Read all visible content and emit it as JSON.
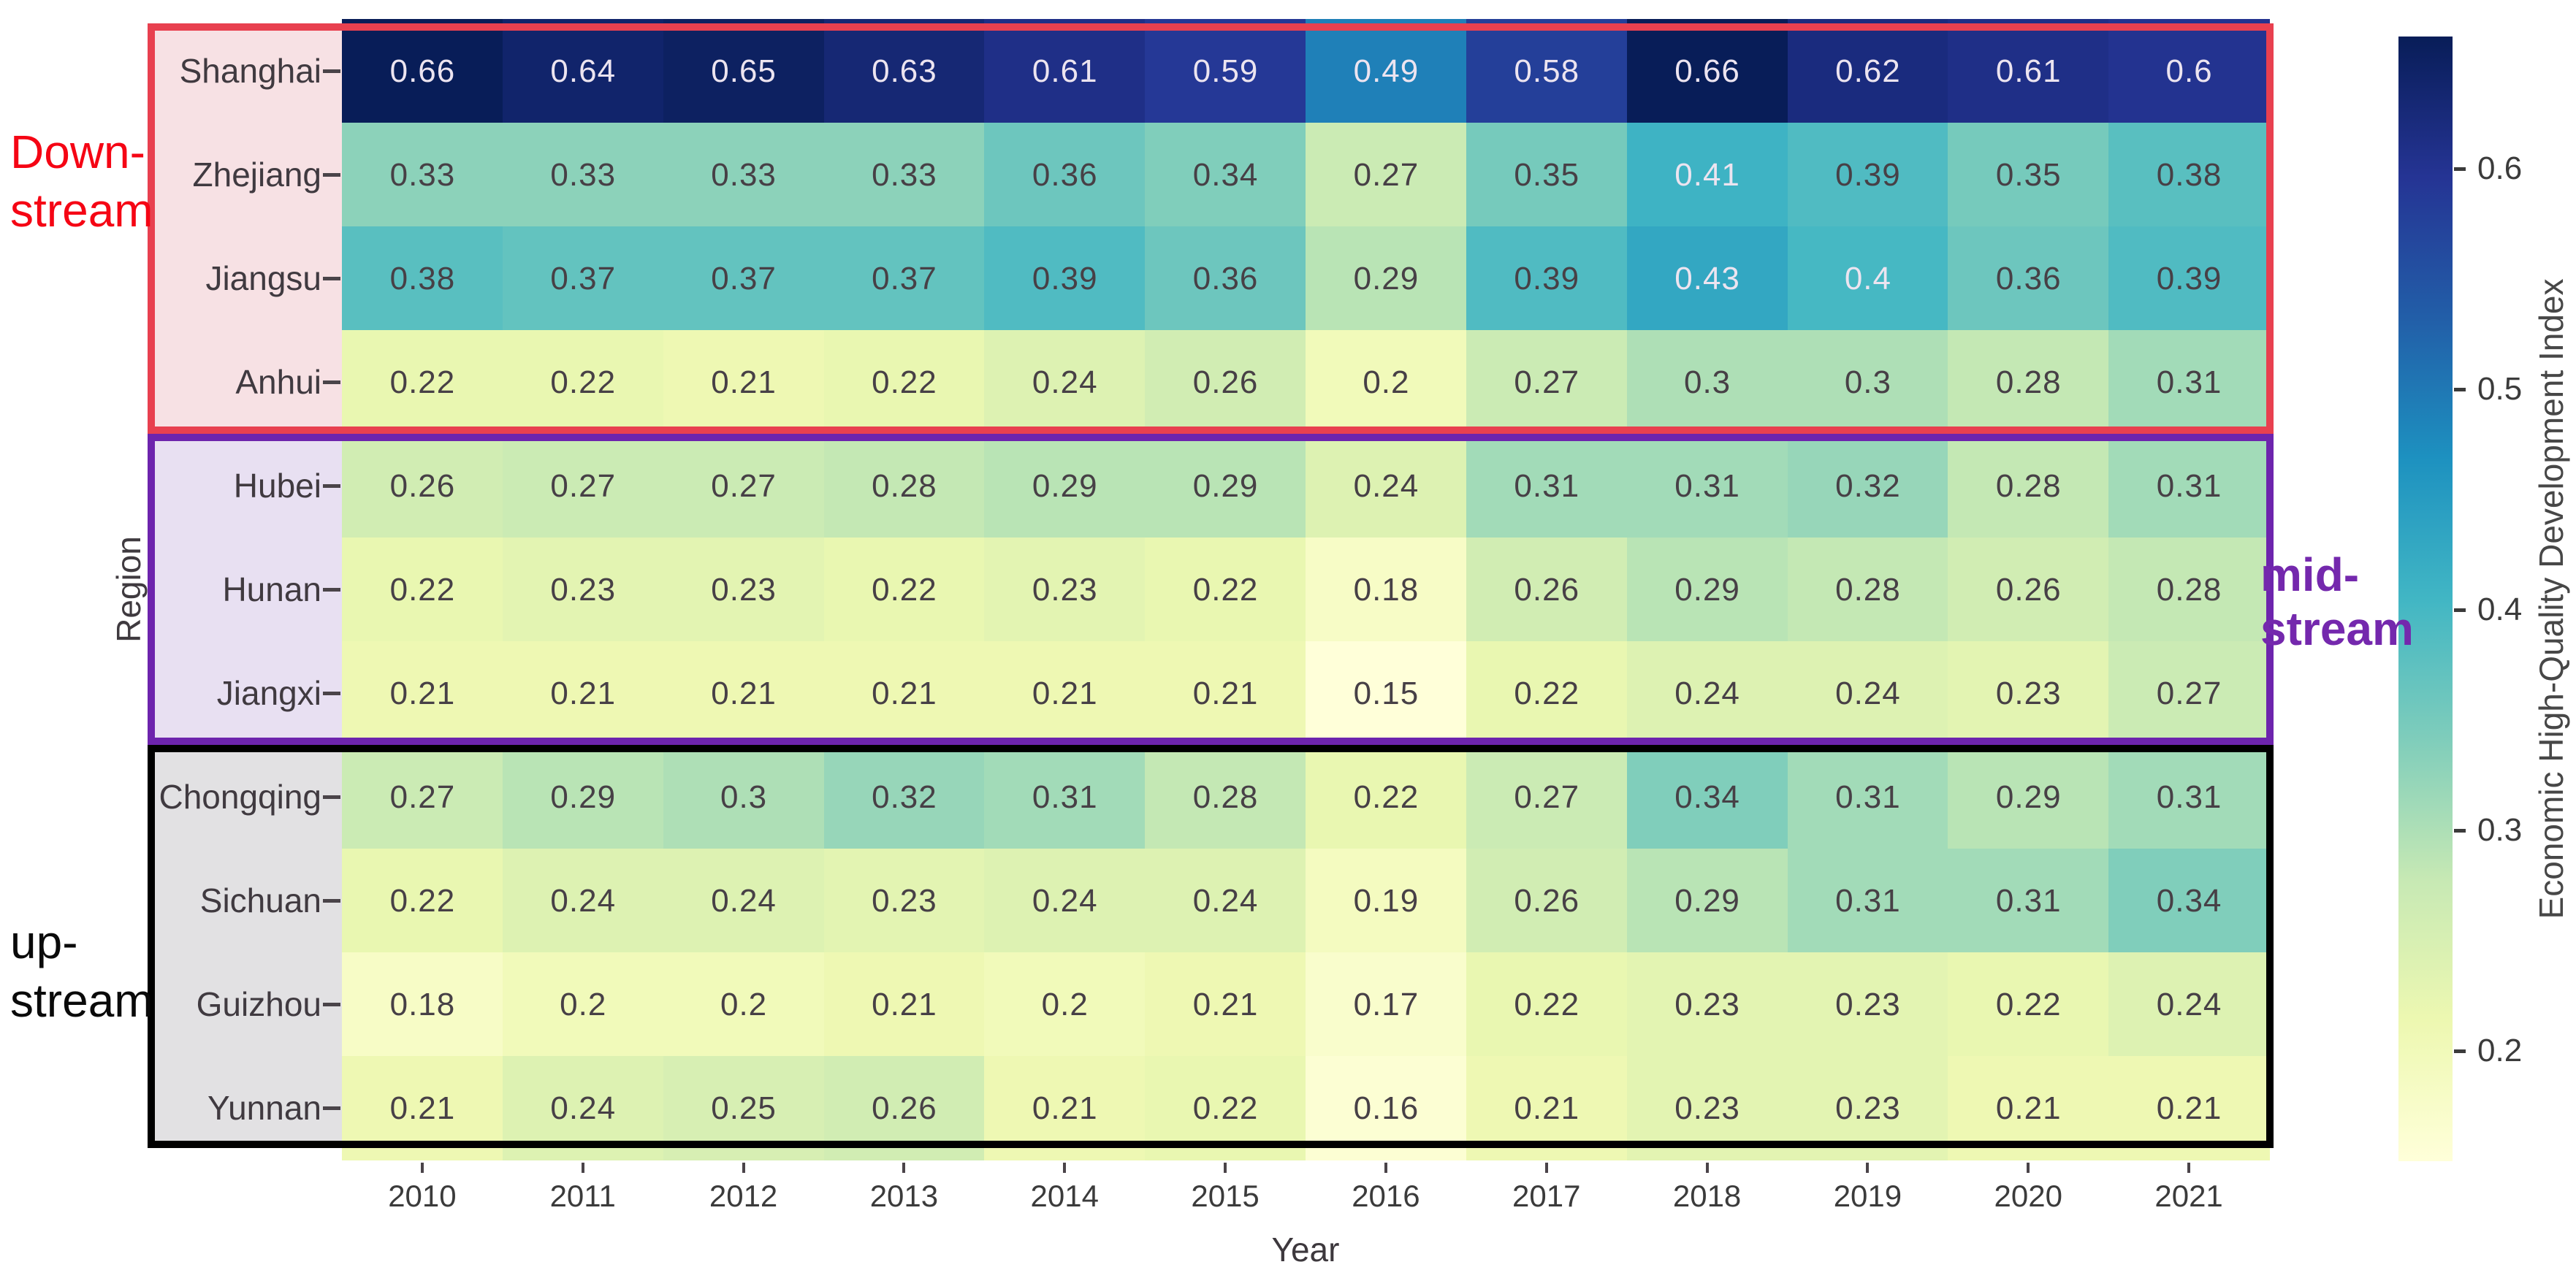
{
  "chart_data": {
    "type": "heatmap",
    "xlabel": "Year",
    "ylabel": "Region",
    "colorbar_label": "Economic High-Quality Development Index",
    "colorbar_ticks": [
      0.6,
      0.5,
      0.4,
      0.3,
      0.2
    ],
    "vmin": 0.15,
    "vmax": 0.66,
    "colormap": "YlGnBu",
    "x": [
      "2010",
      "2011",
      "2012",
      "2013",
      "2014",
      "2015",
      "2016",
      "2017",
      "2018",
      "2019",
      "2020",
      "2021"
    ],
    "rows": [
      {
        "region": "Shanghai",
        "values": [
          0.66,
          0.64,
          0.65,
          0.63,
          0.61,
          0.59,
          0.49,
          0.58,
          0.66,
          0.62,
          0.61,
          0.6
        ]
      },
      {
        "region": "Zhejiang",
        "values": [
          0.33,
          0.33,
          0.33,
          0.33,
          0.36,
          0.34,
          0.27,
          0.35,
          0.41,
          0.39,
          0.35,
          0.38
        ]
      },
      {
        "region": "Jiangsu",
        "values": [
          0.38,
          0.37,
          0.37,
          0.37,
          0.39,
          0.36,
          0.29,
          0.39,
          0.43,
          0.4,
          0.36,
          0.39
        ]
      },
      {
        "region": "Anhui",
        "values": [
          0.22,
          0.22,
          0.21,
          0.22,
          0.24,
          0.26,
          0.2,
          0.27,
          0.3,
          0.3,
          0.28,
          0.31
        ]
      },
      {
        "region": "Hubei",
        "values": [
          0.26,
          0.27,
          0.27,
          0.28,
          0.29,
          0.29,
          0.24,
          0.31,
          0.31,
          0.32,
          0.28,
          0.31
        ]
      },
      {
        "region": "Hunan",
        "values": [
          0.22,
          0.23,
          0.23,
          0.22,
          0.23,
          0.22,
          0.18,
          0.26,
          0.29,
          0.28,
          0.26,
          0.28
        ]
      },
      {
        "region": "Jiangxi",
        "values": [
          0.21,
          0.21,
          0.21,
          0.21,
          0.21,
          0.21,
          0.15,
          0.22,
          0.24,
          0.24,
          0.23,
          0.27
        ]
      },
      {
        "region": "Chongqing",
        "values": [
          0.27,
          0.29,
          0.3,
          0.32,
          0.31,
          0.28,
          0.22,
          0.27,
          0.34,
          0.31,
          0.29,
          0.31
        ]
      },
      {
        "region": "Sichuan",
        "values": [
          0.22,
          0.24,
          0.24,
          0.23,
          0.24,
          0.24,
          0.19,
          0.26,
          0.29,
          0.31,
          0.31,
          0.34
        ]
      },
      {
        "region": "Guizhou",
        "values": [
          0.18,
          0.2,
          0.2,
          0.21,
          0.2,
          0.21,
          0.17,
          0.22,
          0.23,
          0.23,
          0.22,
          0.24
        ]
      },
      {
        "region": "Yunnan",
        "values": [
          0.21,
          0.24,
          0.25,
          0.26,
          0.21,
          0.22,
          0.16,
          0.21,
          0.23,
          0.23,
          0.21,
          0.21
        ]
      }
    ],
    "groups": [
      {
        "name": "Down-stream",
        "label_lines": [
          "Down-",
          "stream"
        ],
        "regions": [
          "Shanghai",
          "Zhejiang",
          "Jiangsu",
          "Anhui"
        ],
        "row_start": 0,
        "row_end": 4,
        "box_color": "#e8404f",
        "text_color": "#f50514",
        "label_bg": "#f7e1e4",
        "label_side": "left"
      },
      {
        "name": "mid-stream",
        "label_lines": [
          "mid-",
          "stream"
        ],
        "regions": [
          "Hubei",
          "Hunan",
          "Jiangxi"
        ],
        "row_start": 4,
        "row_end": 7,
        "box_color": "#6d24ad",
        "text_color": "#7428ad",
        "label_bg": "#e8e0f2",
        "label_side": "right"
      },
      {
        "name": "up-stream",
        "label_lines": [
          "up-",
          "stream"
        ],
        "regions": [
          "Chongqing",
          "Sichuan",
          "Guizhou",
          "Yunnan"
        ],
        "row_start": 7,
        "row_end": 11,
        "box_color": "#000000",
        "text_color": "#0a0a0a",
        "label_bg": "#e2e1e3",
        "label_side": "left"
      }
    ],
    "cell_text_color_dark": "#474046",
    "cell_text_color_light": "#ece4f0",
    "grid": false,
    "legend_position": "right-colorbar"
  }
}
